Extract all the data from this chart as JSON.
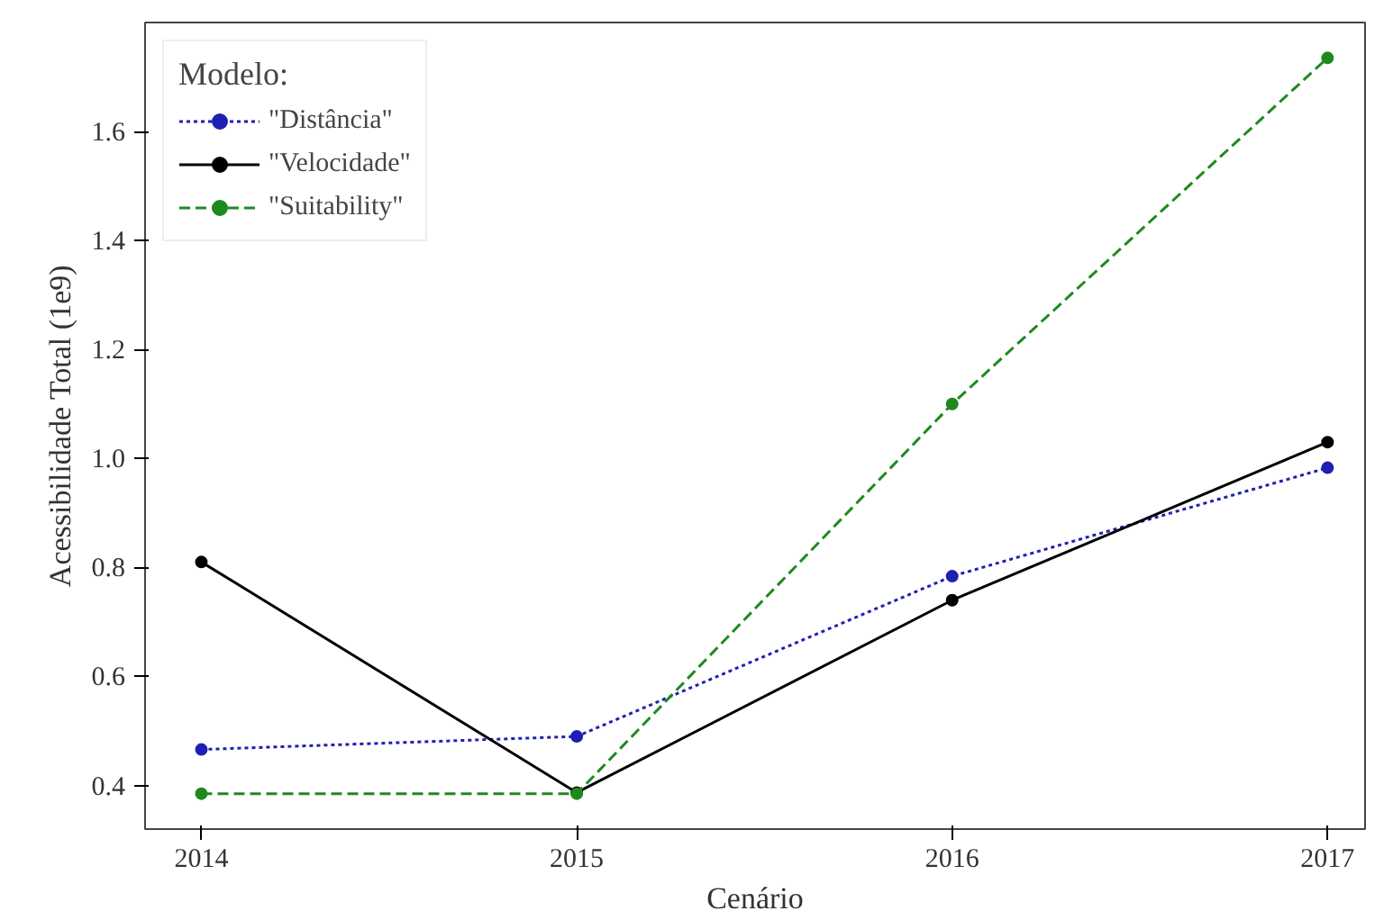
{
  "chart_data": {
    "type": "line",
    "xlabel": "Cenário",
    "ylabel": "Acessibilidade Total (1e9)",
    "legend_title": "Modelo:",
    "x": [
      2014,
      2015,
      2016,
      2017
    ],
    "series": [
      {
        "name": "\"Distância\"",
        "color": "#1f1fb4",
        "values": [
          0.466,
          0.49,
          0.784,
          0.983
        ],
        "line_style": "dotted"
      },
      {
        "name": "\"Velocidade\"",
        "color": "#000000",
        "values": [
          0.81,
          0.387,
          0.74,
          1.03
        ],
        "line_style": "solid"
      },
      {
        "name": "\"Suitability\"",
        "color": "#1e8a1e",
        "values": [
          0.385,
          0.385,
          1.1,
          1.735
        ],
        "line_style": "dashed"
      }
    ],
    "xlim": [
      2013.85,
      2017.1
    ],
    "ylim": [
      0.32,
      1.8
    ],
    "xticks": [
      2014,
      2015,
      2016,
      2017
    ],
    "yticks": [
      0.4,
      0.6,
      0.8,
      {
        "value": 1.0,
        "label": "1.0"
      },
      1.2,
      1.4,
      1.6
    ],
    "grid": false,
    "legend": "top left",
    "marker": "circle"
  }
}
